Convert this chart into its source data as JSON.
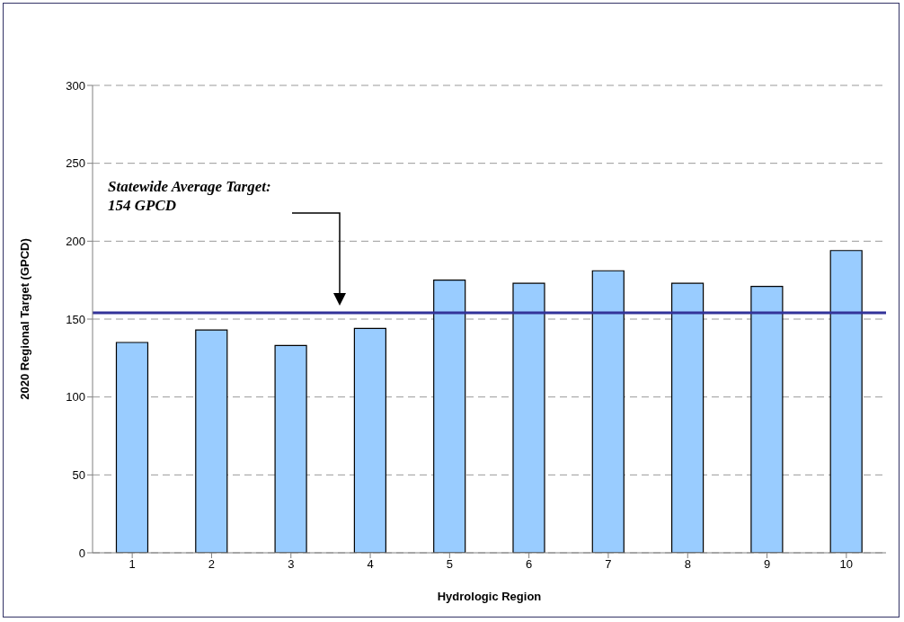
{
  "chart_data": {
    "type": "bar",
    "xlabel": "Hydrologic Region",
    "ylabel": "2020 Regional Target (GPCD)",
    "categories": [
      "1",
      "2",
      "3",
      "4",
      "5",
      "6",
      "7",
      "8",
      "9",
      "10"
    ],
    "values": [
      135,
      143,
      133,
      144,
      175,
      173,
      181,
      173,
      171,
      194
    ],
    "color": "#99ccff",
    "ylim": [
      0,
      300
    ],
    "yticks": [
      0,
      50,
      100,
      150,
      200,
      250,
      300
    ],
    "grid": "y",
    "annotations": [
      "Statewide Average Target:\n154 GPCD"
    ],
    "ref_lines": [
      {
        "axis": "y",
        "value": 154,
        "color": "#333399",
        "line_style": "solid"
      }
    ]
  }
}
